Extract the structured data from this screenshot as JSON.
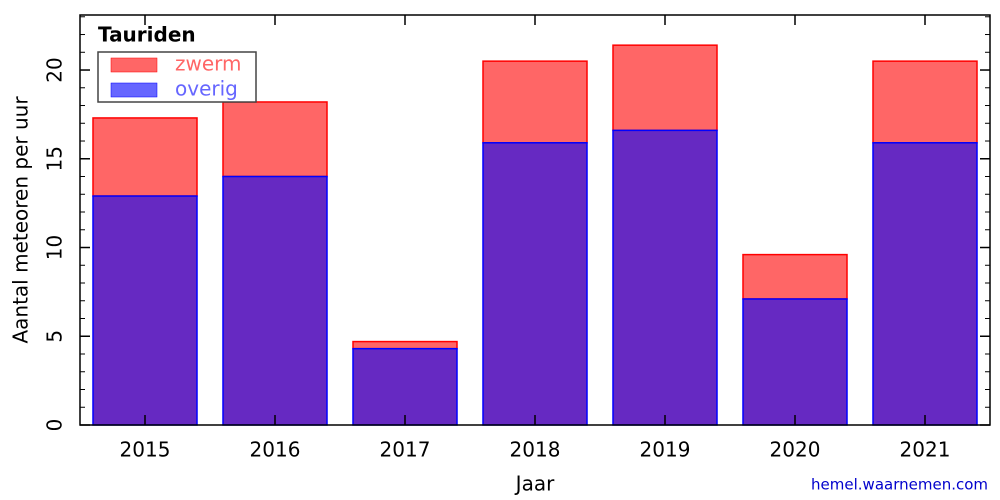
{
  "chart_data": {
    "type": "stacked-bar",
    "title": "Tauriden",
    "x_label": "Jaar",
    "y_label": "Aantal meteoren per uur",
    "source": "hemel.waarnemen.com",
    "categories": [
      "2015",
      "2016",
      "2017",
      "2018",
      "2019",
      "2020",
      "2021"
    ],
    "series": [
      {
        "name": "overig",
        "color": "#0000ff",
        "values": [
          12.9,
          14.0,
          4.3,
          15.9,
          16.6,
          7.1,
          15.9
        ]
      },
      {
        "name": "zwerm",
        "color": "#ff0000",
        "values": [
          4.4,
          4.2,
          0.4,
          4.6,
          4.8,
          2.5,
          4.6
        ]
      }
    ],
    "ylim": [
      0,
      23.1
    ],
    "yticks": [
      0,
      5,
      10,
      15,
      20
    ]
  }
}
